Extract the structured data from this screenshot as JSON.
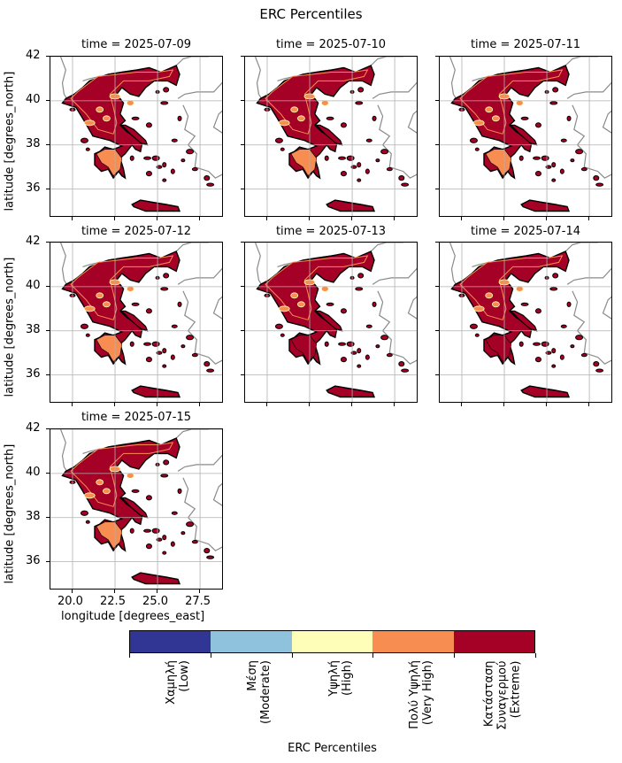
{
  "chart_data": {
    "type": "heatmap",
    "title": "ERC Percentiles",
    "ylabel": "latitude [degrees_north]",
    "xlabel": "longitude [degrees_east]",
    "x_ticks": [
      "20.0",
      "22.5",
      "25.0",
      "27.5"
    ],
    "y_ticks": [
      "42",
      "40",
      "38",
      "36"
    ],
    "xlim": [
      18.7,
      28.9
    ],
    "ylim": [
      34.7,
      42.0
    ],
    "grid": true,
    "panels": [
      {
        "title": "time = 2025-07-09"
      },
      {
        "title": "time = 2025-07-10"
      },
      {
        "title": "time = 2025-07-11"
      },
      {
        "title": "time = 2025-07-12"
      },
      {
        "title": "time = 2025-07-13"
      },
      {
        "title": "time = 2025-07-14"
      },
      {
        "title": "time = 2025-07-15"
      }
    ],
    "colorbar": {
      "title": "ERC Percentiles",
      "categories": [
        {
          "label": "Χαμηλή\n(Low)",
          "color": "#313695"
        },
        {
          "label": "Μέση\n(Moderate)",
          "color": "#8fc3dd"
        },
        {
          "label": "Υψηλή\n(High)",
          "color": "#fefeb8"
        },
        {
          "label": "Πολύ Υψηλή\n(Very High)",
          "color": "#f88d51"
        },
        {
          "label": "Κατάσταση\nΣυναγερμού\n(Extreme)",
          "color": "#a50026"
        }
      ]
    }
  }
}
